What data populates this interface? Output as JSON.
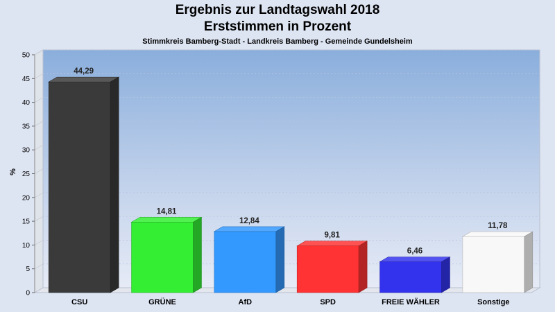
{
  "chart_data": {
    "type": "bar",
    "title": "Ergebnis zur Landtagswahl 2018",
    "title_line2": "Erststimmen in Prozent",
    "subtitle": "Stimmkreis Bamberg-Stadt - Landkreis Bamberg - Gemeinde Gundelsheim",
    "ylabel": "%",
    "xlabel": "",
    "ylim": [
      0,
      50
    ],
    "yticks": [
      0,
      5,
      10,
      15,
      20,
      25,
      30,
      35,
      40,
      45,
      50
    ],
    "categories": [
      "CSU",
      "GRÜNE",
      "AfD",
      "SPD",
      "FREIE WÄHLER",
      "Sonstige"
    ],
    "values": [
      44.29,
      14.81,
      12.84,
      9.81,
      6.46,
      11.78
    ],
    "value_labels": [
      "44,29",
      "14,81",
      "12,84",
      "9,81",
      "6,46",
      "11,78"
    ],
    "colors": [
      "#3a3a3a",
      "#33ee33",
      "#3399ff",
      "#ff3333",
      "#3333ee",
      "#f8f8f8"
    ],
    "grid": true,
    "legend": "none"
  }
}
